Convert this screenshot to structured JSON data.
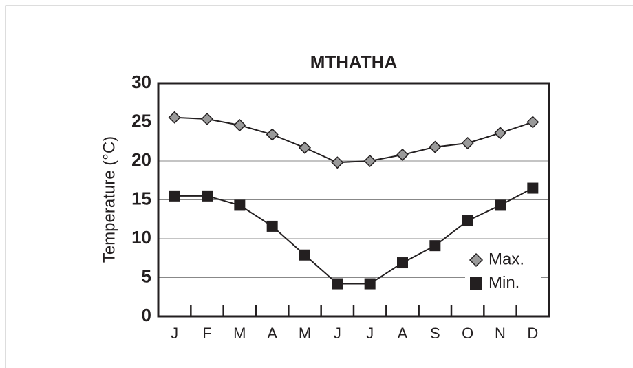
{
  "chart_data": {
    "type": "line",
    "title": "MTHATHA",
    "y_label": "Temperature (°C)",
    "categories": [
      "J",
      "F",
      "M",
      "A",
      "M",
      "J",
      "J",
      "A",
      "S",
      "O",
      "N",
      "D"
    ],
    "series": [
      {
        "name": "Max.",
        "color": "#9a9a9a",
        "marker": "diamond",
        "values": [
          25.6,
          25.4,
          24.6,
          23.4,
          21.7,
          19.8,
          20.0,
          20.8,
          21.8,
          22.3,
          23.6,
          25.0
        ]
      },
      {
        "name": "Min.",
        "color": "#231f20",
        "marker": "square",
        "values": [
          15.5,
          15.5,
          14.3,
          11.6,
          7.9,
          4.2,
          4.2,
          6.9,
          9.1,
          12.3,
          14.3,
          16.5
        ]
      }
    ],
    "ylim": [
      0,
      30
    ],
    "yticks": [
      0,
      5,
      10,
      15,
      20,
      25,
      30
    ],
    "grid": true,
    "legend": "lower right"
  }
}
